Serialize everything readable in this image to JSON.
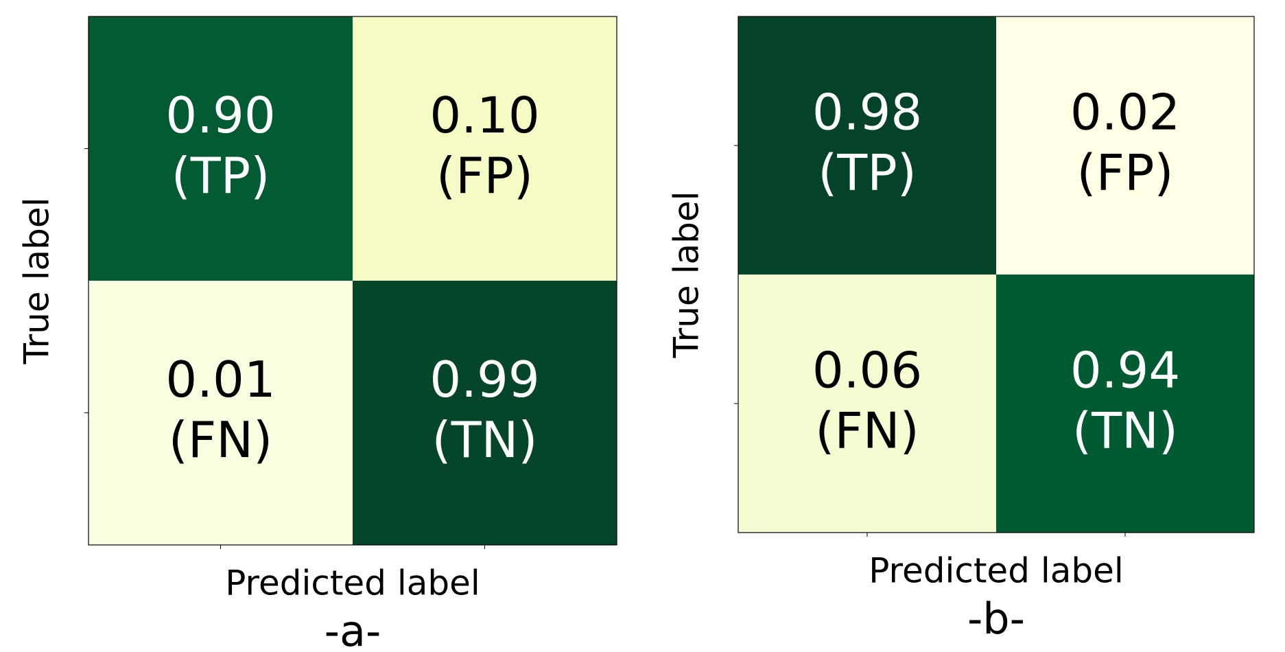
{
  "chart_data": [
    {
      "type": "heatmap",
      "x_label": "Predicted label",
      "y_label": "True label",
      "caption": "-a-",
      "x_categories": [
        null,
        null
      ],
      "y_categories": [
        null,
        null
      ],
      "values": [
        [
          0.9,
          0.1
        ],
        [
          0.01,
          0.99
        ]
      ],
      "value_labels": [
        [
          "0.90",
          "0.10"
        ],
        [
          "0.01",
          "0.99"
        ]
      ],
      "cell_labels": [
        [
          "(TP)",
          "(FP)"
        ],
        [
          "(FN)",
          "(TN)"
        ]
      ],
      "colors": [
        [
          "#025b32",
          "#f6fbc6"
        ],
        [
          "#fbfde0",
          "#05452a"
        ]
      ]
    },
    {
      "type": "heatmap",
      "x_label": "Predicted label",
      "y_label": "True label",
      "caption": "-b-",
      "x_categories": [
        null,
        null
      ],
      "y_categories": [
        null,
        null
      ],
      "values": [
        [
          0.98,
          0.02
        ],
        [
          0.06,
          0.94
        ]
      ],
      "value_labels": [
        [
          "0.98",
          "0.02"
        ],
        [
          "0.06",
          "0.94"
        ]
      ],
      "cell_labels": [
        [
          "(TP)",
          "(FP)"
        ],
        [
          "(FN)",
          "(TN)"
        ]
      ],
      "colors": [
        [
          "#04432a",
          "#fdfee4"
        ],
        [
          "#f7fbd2",
          "#005a32"
        ]
      ]
    }
  ]
}
